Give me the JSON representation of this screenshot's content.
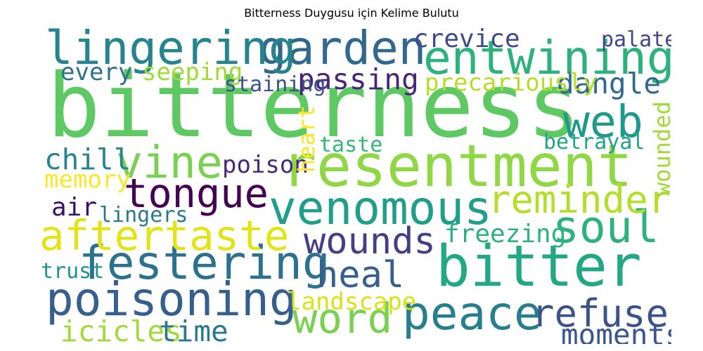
{
  "chart_data": {
    "type": "wordcloud",
    "title": "Bitterness Duygusu için Kelime Bulutu",
    "colormap": "viridis",
    "background": "#ffffff",
    "words": [
      {
        "text": "bitterness",
        "weight": 100,
        "color": "#5ec962"
      },
      {
        "text": "resentment",
        "weight": 62,
        "color": "#8fd744"
      },
      {
        "text": "bitter",
        "weight": 60,
        "color": "#22a884"
      },
      {
        "text": "garden",
        "weight": 46,
        "color": "#31688e"
      },
      {
        "text": "lingering",
        "weight": 46,
        "color": "#25848e"
      },
      {
        "text": "entwining",
        "weight": 46,
        "color": "#2db27d"
      },
      {
        "text": "poisoning",
        "weight": 46,
        "color": "#355f8d"
      },
      {
        "text": "festering",
        "weight": 46,
        "color": "#2c728e"
      },
      {
        "text": "venomous",
        "weight": 46,
        "color": "#1f9e89"
      },
      {
        "text": "peace",
        "weight": 46,
        "color": "#277f8e"
      },
      {
        "text": "vine",
        "weight": 44,
        "color": "#7ad151"
      },
      {
        "text": "web",
        "weight": 44,
        "color": "#1f9a8a"
      },
      {
        "text": "soul",
        "weight": 44,
        "color": "#2db27d"
      },
      {
        "text": "aftertaste",
        "weight": 40,
        "color": "#e2e418"
      },
      {
        "text": "word",
        "weight": 40,
        "color": "#7ad151"
      },
      {
        "text": "tongue",
        "weight": 38,
        "color": "#440154"
      },
      {
        "text": "reminder",
        "weight": 36,
        "color": "#b5de2b"
      },
      {
        "text": "refuse",
        "weight": 36,
        "color": "#3b528b"
      },
      {
        "text": "wounds",
        "weight": 34,
        "color": "#433e85"
      },
      {
        "text": "heal",
        "weight": 34,
        "color": "#355f8d"
      },
      {
        "text": "passing",
        "weight": 24,
        "color": "#482677"
      },
      {
        "text": "dangle",
        "weight": 24,
        "color": "#31688e"
      },
      {
        "text": "chill",
        "weight": 24,
        "color": "#25848e"
      },
      {
        "text": "icicles",
        "weight": 24,
        "color": "#a0da39"
      },
      {
        "text": "time",
        "weight": 24,
        "color": "#2a788e"
      },
      {
        "text": "moments",
        "weight": 24,
        "color": "#39558c"
      },
      {
        "text": "freezing",
        "weight": 20,
        "color": "#2db27d"
      },
      {
        "text": "crevice",
        "weight": 20,
        "color": "#3e4989"
      },
      {
        "text": "air",
        "weight": 20,
        "color": "#3b0f70"
      },
      {
        "text": "every",
        "weight": 18,
        "color": "#2c728e"
      },
      {
        "text": "seeping",
        "weight": 18,
        "color": "#a0da39"
      },
      {
        "text": "precariously",
        "weight": 18,
        "color": "#b5de2b"
      },
      {
        "text": "poison",
        "weight": 18,
        "color": "#482878"
      },
      {
        "text": "memory",
        "weight": 18,
        "color": "#fde725"
      },
      {
        "text": "landscape",
        "weight": 18,
        "color": "#d8e219"
      },
      {
        "text": "wounded",
        "weight": 16,
        "color": "#a0da39"
      },
      {
        "text": "heart",
        "weight": 16,
        "color": "#fde725"
      },
      {
        "text": "staining",
        "weight": 14,
        "color": "#3b528b"
      },
      {
        "text": "palate",
        "weight": 14,
        "color": "#404688"
      },
      {
        "text": "taste",
        "weight": 14,
        "color": "#35b779"
      },
      {
        "text": "betrayal",
        "weight": 14,
        "color": "#20a386"
      },
      {
        "text": "lingers",
        "weight": 14,
        "color": "#2a788e"
      },
      {
        "text": "trust",
        "weight": 14,
        "color": "#21918c"
      }
    ]
  }
}
